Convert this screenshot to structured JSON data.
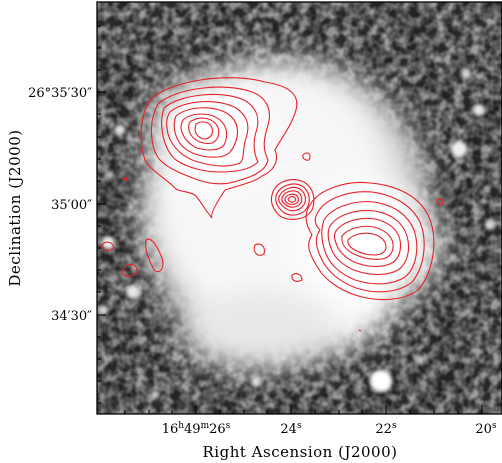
{
  "figure": {
    "x_axis": {
      "title": "Right Ascension (J2000)",
      "ticks": [
        {
          "main": "16",
          "sup1": "h",
          "mid": "49",
          "sup2": "m",
          "end": "26",
          "sup3": "s"
        },
        {
          "main": "24",
          "sup1": "s"
        },
        {
          "main": "22",
          "sup1": "s"
        },
        {
          "main": "20",
          "sup1": "s"
        }
      ]
    },
    "y_axis": {
      "title": "Declination (J2000)",
      "ticks": [
        {
          "label": "26°35′30″"
        },
        {
          "label": "35′00″"
        },
        {
          "label": "34′30″"
        }
      ]
    },
    "image": {
      "colormap": "grayscale",
      "contour_color": "#e8202a"
    }
  }
}
